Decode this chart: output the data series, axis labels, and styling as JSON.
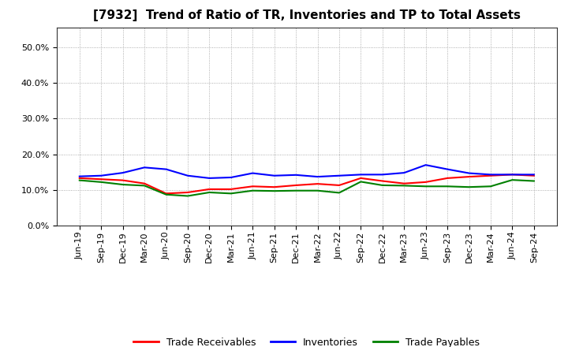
{
  "title": "[7932]  Trend of Ratio of TR, Inventories and TP to Total Assets",
  "x_labels": [
    "Jun-19",
    "Sep-19",
    "Dec-19",
    "Mar-20",
    "Jun-20",
    "Sep-20",
    "Dec-20",
    "Mar-21",
    "Jun-21",
    "Sep-21",
    "Dec-21",
    "Mar-22",
    "Jun-22",
    "Sep-22",
    "Dec-22",
    "Mar-23",
    "Jun-23",
    "Sep-23",
    "Dec-23",
    "Mar-24",
    "Jun-24",
    "Sep-24"
  ],
  "trade_receivables": [
    0.133,
    0.13,
    0.127,
    0.118,
    0.09,
    0.093,
    0.102,
    0.102,
    0.11,
    0.108,
    0.113,
    0.117,
    0.113,
    0.133,
    0.125,
    0.118,
    0.122,
    0.133,
    0.137,
    0.14,
    0.143,
    0.14
  ],
  "inventories": [
    0.138,
    0.14,
    0.148,
    0.163,
    0.158,
    0.14,
    0.133,
    0.135,
    0.147,
    0.14,
    0.142,
    0.137,
    0.14,
    0.143,
    0.143,
    0.148,
    0.17,
    0.158,
    0.147,
    0.143,
    0.143,
    0.143
  ],
  "trade_payables": [
    0.127,
    0.122,
    0.115,
    0.112,
    0.087,
    0.083,
    0.093,
    0.09,
    0.098,
    0.097,
    0.098,
    0.098,
    0.092,
    0.123,
    0.113,
    0.112,
    0.11,
    0.11,
    0.108,
    0.11,
    0.128,
    0.125
  ],
  "colors": {
    "trade_receivables": "#FF0000",
    "inventories": "#0000FF",
    "trade_payables": "#008000"
  },
  "ylim": [
    0.0,
    0.555
  ],
  "yticks": [
    0.0,
    0.1,
    0.2,
    0.3,
    0.4,
    0.5
  ],
  "legend_labels": [
    "Trade Receivables",
    "Inventories",
    "Trade Payables"
  ],
  "background_color": "#FFFFFF",
  "grid_color": "#999999",
  "title_fontsize": 11,
  "tick_fontsize": 8,
  "line_width": 1.5
}
